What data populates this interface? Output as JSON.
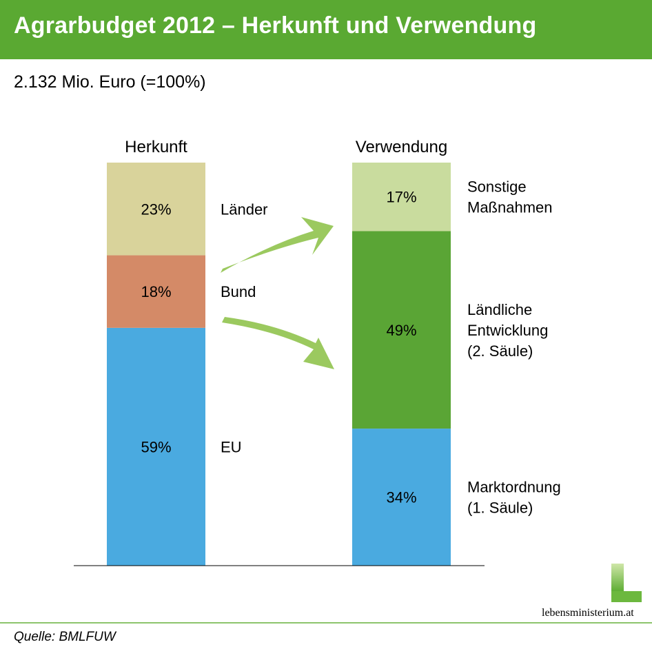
{
  "header": {
    "title": "Agrarbudget 2012 – Herkunft und Verwendung"
  },
  "subtitle": "2.132 Mio. Euro (=100%)",
  "chart_data": {
    "type": "bar",
    "stacked": true,
    "unit": "%",
    "ylim": [
      0,
      100
    ],
    "categories": [
      "Herkunft",
      "Verwendung"
    ],
    "stacks": [
      {
        "category": "Herkunft",
        "segments": [
          {
            "name": "EU",
            "value": 59,
            "label": "59%",
            "color": "#4aaae0"
          },
          {
            "name": "Bund",
            "value": 18,
            "label": "18%",
            "color": "#d48a67"
          },
          {
            "name": "Länder",
            "value": 23,
            "label": "23%",
            "color": "#d9d39b"
          }
        ]
      },
      {
        "category": "Verwendung",
        "segments": [
          {
            "name": "Marktordnung\n(1. Säule)",
            "value": 34,
            "label": "34%",
            "color": "#4aaae0"
          },
          {
            "name": "Ländliche\nEntwicklung\n(2. Säule)",
            "value": 49,
            "label": "49%",
            "color": "#5aa535"
          },
          {
            "name": "Sonstige\nMaßnahmen",
            "value": 17,
            "label": "17%",
            "color": "#c9dc9e"
          }
        ]
      }
    ],
    "arrow_color": "#9bc95f"
  },
  "logo": {
    "text": "lebensministerium.at"
  },
  "footer": {
    "source": "Quelle: BMLFUW"
  }
}
